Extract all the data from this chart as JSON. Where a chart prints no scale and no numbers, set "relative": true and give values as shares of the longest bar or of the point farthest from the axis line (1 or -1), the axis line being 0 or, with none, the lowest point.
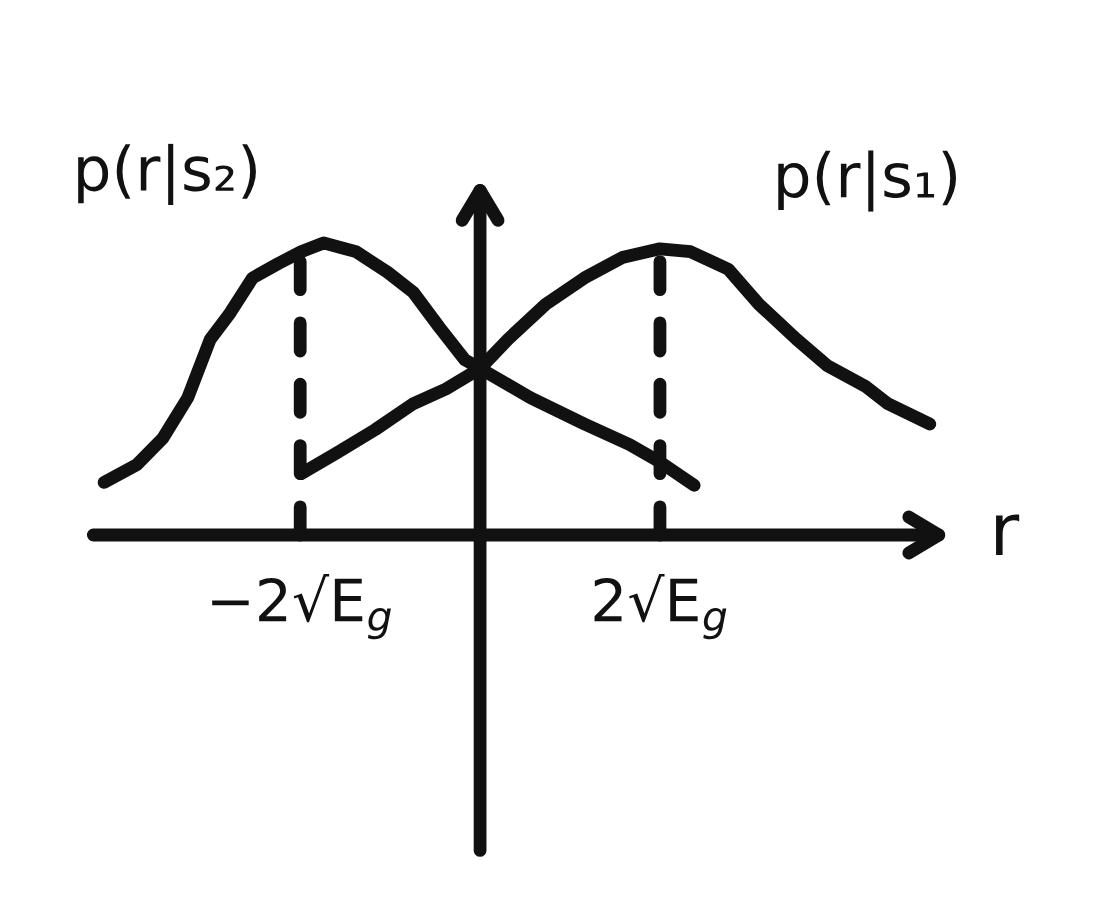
{
  "chart_data": {
    "type": "line",
    "xlabel": "r",
    "relative": true,
    "xlim": [
      -4.3,
      5.1
    ],
    "xticks": [
      {
        "value": -2,
        "label": "−2√E$_{g}$"
      },
      {
        "value": 2,
        "label": "2√E$_{g}$"
      }
    ],
    "grid": false,
    "line_style": "solid",
    "series": [
      {
        "name": "p(r|s₂)",
        "color": "#111111",
        "x": [
          -4.18,
          -3.82,
          -3.53,
          -3.25,
          -3.0,
          -2.78,
          -2.53,
          -2.24,
          -1.99,
          -1.74,
          -1.38,
          -1.03,
          -0.74,
          -0.45,
          -0.17,
          0,
          0.56,
          1.16,
          1.66,
          2.0,
          2.38
        ],
        "values": [
          0.18,
          0.24,
          0.33,
          0.47,
          0.67,
          0.76,
          0.88,
          0.93,
          0.97,
          1.0,
          0.97,
          0.9,
          0.83,
          0.71,
          0.6,
          0.57,
          0.47,
          0.38,
          0.31,
          0.25,
          0.17
        ]
      },
      {
        "name": "p(r|s₁)",
        "color": "#111111",
        "x": [
          -1.99,
          -1.6,
          -1.17,
          -0.74,
          -0.38,
          0,
          0.31,
          0.73,
          1.16,
          1.58,
          2.0,
          2.34,
          2.76,
          3.1,
          3.52,
          3.86,
          4.28,
          4.53,
          5.0
        ],
        "values": [
          0.21,
          0.28,
          0.36,
          0.45,
          0.5,
          0.57,
          0.67,
          0.79,
          0.88,
          0.95,
          0.98,
          0.97,
          0.91,
          0.79,
          0.67,
          0.58,
          0.51,
          0.45,
          0.38
        ]
      }
    ],
    "ref_lines": [
      {
        "axis": "x",
        "value": -2,
        "color": "#111111",
        "line_style": "dashed"
      },
      {
        "axis": "x",
        "value": 2,
        "color": "#111111",
        "line_style": "dashed"
      }
    ]
  }
}
